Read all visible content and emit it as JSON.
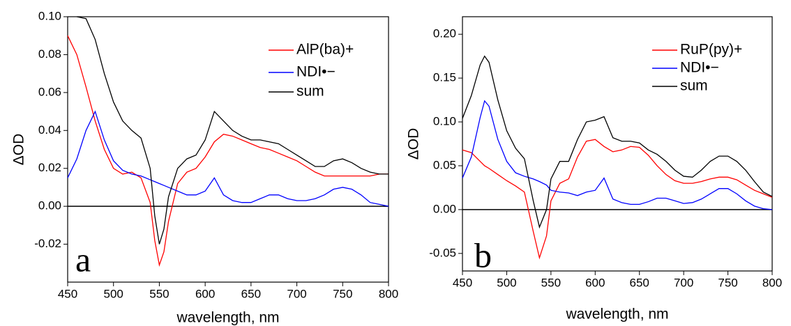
{
  "chart_data": [
    {
      "type": "line",
      "label": "a",
      "xlabel": "wavelength, nm",
      "ylabel": "ΔOD",
      "x": [
        450,
        460,
        470,
        480,
        490,
        500,
        510,
        520,
        530,
        540,
        545,
        550,
        555,
        560,
        570,
        580,
        590,
        600,
        610,
        620,
        630,
        640,
        650,
        660,
        670,
        680,
        690,
        700,
        710,
        720,
        730,
        740,
        750,
        760,
        770,
        780,
        790,
        800
      ],
      "series": [
        {
          "name": "AlP(ba)+",
          "color": "#ff0000",
          "values": [
            0.09,
            0.08,
            0.063,
            0.045,
            0.03,
            0.02,
            0.017,
            0.018,
            0.015,
            0.002,
            -0.018,
            -0.031,
            -0.024,
            -0.008,
            0.012,
            0.018,
            0.02,
            0.026,
            0.034,
            0.038,
            0.037,
            0.035,
            0.033,
            0.031,
            0.03,
            0.028,
            0.026,
            0.024,
            0.021,
            0.018,
            0.016,
            0.016,
            0.016,
            0.016,
            0.016,
            0.016,
            0.017,
            0.017
          ]
        },
        {
          "name": "NDI•−",
          "color": "#0000ff",
          "values": [
            0.015,
            0.025,
            0.04,
            0.05,
            0.035,
            0.024,
            0.019,
            0.017,
            0.016,
            0.014,
            0.013,
            0.012,
            0.011,
            0.01,
            0.008,
            0.006,
            0.006,
            0.008,
            0.015,
            0.006,
            0.003,
            0.002,
            0.002,
            0.004,
            0.006,
            0.006,
            0.004,
            0.003,
            0.003,
            0.004,
            0.006,
            0.009,
            0.01,
            0.009,
            0.006,
            0.002,
            0.001,
            0.0
          ]
        },
        {
          "name": "sum",
          "color": "#000000",
          "values": [
            null,
            0.1,
            0.099,
            0.088,
            0.07,
            0.055,
            0.045,
            0.04,
            0.036,
            0.02,
            -0.005,
            -0.02,
            -0.012,
            0.005,
            0.02,
            0.025,
            0.027,
            0.035,
            0.05,
            0.045,
            0.04,
            0.037,
            0.035,
            0.035,
            0.034,
            0.033,
            0.03,
            0.027,
            0.024,
            0.021,
            0.021,
            0.024,
            0.025,
            0.023,
            0.02,
            0.018,
            0.017,
            0.017
          ]
        }
      ],
      "xlim": [
        450,
        800
      ],
      "xticks": [
        450,
        500,
        550,
        600,
        650,
        700,
        750,
        800
      ],
      "ylim": [
        -0.04,
        0.1
      ],
      "yticks": [
        {
          "value": -0.02,
          "label": "-0.02"
        },
        {
          "value": 0,
          "label": "0.00"
        },
        {
          "value": 0.02,
          "label": "0.02"
        },
        {
          "value": 0.04,
          "label": "0.04"
        },
        {
          "value": 0.06,
          "label": "0.06"
        },
        {
          "value": 0.08,
          "label": "0.08"
        },
        {
          "value": 0.1,
          "label": "0.10"
        }
      ]
    },
    {
      "type": "line",
      "label": "b",
      "xlabel": "wavelength, nm",
      "ylabel": "ΔOD",
      "x": [
        450,
        460,
        470,
        475,
        480,
        490,
        500,
        510,
        520,
        530,
        537,
        545,
        550,
        560,
        570,
        580,
        590,
        600,
        610,
        620,
        630,
        640,
        650,
        660,
        670,
        680,
        690,
        700,
        710,
        720,
        730,
        740,
        750,
        760,
        770,
        780,
        790,
        800
      ],
      "series": [
        {
          "name": "RuP(py)+",
          "color": "#ff0000",
          "values": [
            0.068,
            0.065,
            0.055,
            0.05,
            0.047,
            0.04,
            0.033,
            0.027,
            0.02,
            -0.025,
            -0.055,
            -0.03,
            0.01,
            0.03,
            0.035,
            0.06,
            0.078,
            0.08,
            0.072,
            0.066,
            0.068,
            0.072,
            0.071,
            0.062,
            0.05,
            0.04,
            0.033,
            0.03,
            0.03,
            0.032,
            0.035,
            0.037,
            0.037,
            0.034,
            0.028,
            0.022,
            0.018,
            0.014
          ]
        },
        {
          "name": "NDI•−",
          "color": "#0000ff",
          "values": [
            0.036,
            0.06,
            0.105,
            0.124,
            0.118,
            0.08,
            0.055,
            0.042,
            0.038,
            0.035,
            0.032,
            0.028,
            0.022,
            0.02,
            0.019,
            0.016,
            0.02,
            0.022,
            0.036,
            0.012,
            0.008,
            0.006,
            0.006,
            0.009,
            0.013,
            0.013,
            0.01,
            0.007,
            0.008,
            0.012,
            0.018,
            0.024,
            0.024,
            0.018,
            0.01,
            0.004,
            0.001,
            0.0
          ]
        },
        {
          "name": "sum",
          "color": "#000000",
          "values": [
            0.104,
            0.13,
            0.165,
            0.175,
            0.168,
            0.125,
            0.09,
            0.07,
            0.058,
            0.01,
            -0.02,
            0.0,
            0.035,
            0.055,
            0.055,
            0.08,
            0.1,
            0.102,
            0.106,
            0.082,
            0.078,
            0.078,
            0.076,
            0.068,
            0.063,
            0.055,
            0.045,
            0.038,
            0.037,
            0.045,
            0.055,
            0.061,
            0.061,
            0.055,
            0.045,
            0.032,
            0.02,
            0.015
          ]
        }
      ],
      "xlim": [
        450,
        800
      ],
      "xticks": [
        450,
        500,
        550,
        600,
        650,
        700,
        750,
        800
      ],
      "ylim": [
        -0.07,
        0.22
      ],
      "yticks": [
        {
          "value": -0.05,
          "label": "-0.05"
        },
        {
          "value": 0,
          "label": "0.00"
        },
        {
          "value": 0.05,
          "label": "0.05"
        },
        {
          "value": 0.1,
          "label": "0.10"
        },
        {
          "value": 0.15,
          "label": "0.15"
        },
        {
          "value": 0.2,
          "label": "0.20"
        }
      ]
    }
  ]
}
